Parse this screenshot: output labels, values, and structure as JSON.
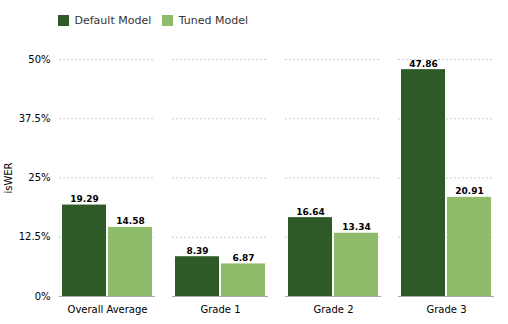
{
  "chart_data": {
    "type": "bar",
    "categories": [
      "Overall Average",
      "Grade 1",
      "Grade 2",
      "Grade 3"
    ],
    "series": [
      {
        "name": "Default Model",
        "color": "#2d5a27",
        "values": [
          19.29,
          8.39,
          16.64,
          47.86
        ]
      },
      {
        "name": "Tuned Model",
        "color": "#8fbc6a",
        "values": [
          14.58,
          6.87,
          13.34,
          20.91
        ]
      }
    ],
    "ylabel": "isWER",
    "ylim": [
      0,
      50
    ],
    "yticks": [
      {
        "value": 0,
        "label": "0%"
      },
      {
        "value": 12.5,
        "label": "12.5%"
      },
      {
        "value": 25,
        "label": "25%"
      },
      {
        "value": 37.5,
        "label": "37.5%"
      },
      {
        "value": 50,
        "label": "50%"
      }
    ],
    "grid": true,
    "legend": "upper left",
    "data_labels": true
  }
}
